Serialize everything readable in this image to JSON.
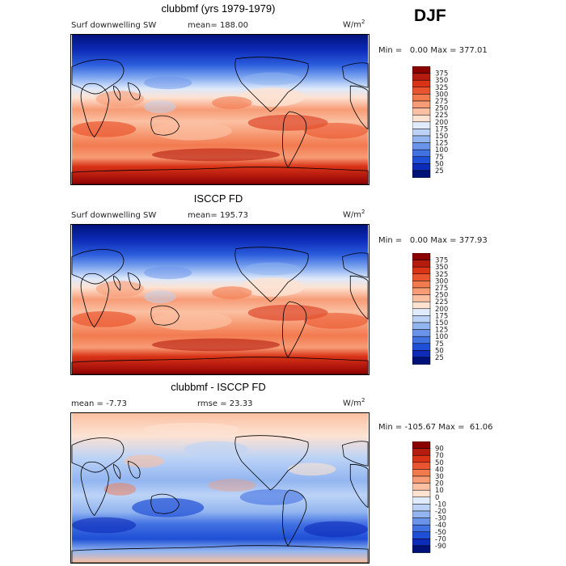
{
  "season": "DJF",
  "panels": [
    {
      "title": "clubbmf (yrs 1979-1979)",
      "variable": "Surf downwelling SW",
      "mean_label": "mean=",
      "mean_value": "188.00",
      "units": "W/m",
      "units_sup": "2",
      "min_label": "Min =",
      "min_value": "0.00",
      "max_label": "Max =",
      "max_value": "377.01"
    },
    {
      "title": "ISCCP FD",
      "variable": "Surf downwelling SW",
      "mean_label": "mean=",
      "mean_value": "195.73",
      "units": "W/m",
      "units_sup": "2",
      "min_label": "Min =",
      "min_value": "0.00",
      "max_label": "Max =",
      "max_value": "377.93"
    },
    {
      "title": "clubbmf - ISCCP FD",
      "variable": "",
      "mean_label": "mean =",
      "mean_value": "-7.73",
      "rmse_label": "rmse =",
      "rmse_value": "23.33",
      "units": "W/m",
      "units_sup": "2",
      "min_label": "Min =",
      "min_value": "-105.67",
      "max_label": "Max =",
      "max_value": "61.06"
    }
  ],
  "colorbar_abs": {
    "labels": [
      "375",
      "350",
      "325",
      "300",
      "275",
      "250",
      "225",
      "200",
      "175",
      "150",
      "125",
      "100",
      "75",
      "50",
      "25"
    ],
    "colors": [
      "#8b0000",
      "#b51b0e",
      "#d93418",
      "#e9552f",
      "#f27a4f",
      "#f79c76",
      "#fbc0a2",
      "#fde2d2",
      "#e0ecfb",
      "#bcd3f6",
      "#92b5f0",
      "#6a93ea",
      "#4271e2",
      "#1f4fd6",
      "#0d2ab8",
      "#00127a"
    ]
  },
  "colorbar_diff": {
    "labels": [
      "90",
      "70",
      "50",
      "40",
      "30",
      "20",
      "10",
      "0",
      "-10",
      "-20",
      "-30",
      "-40",
      "-50",
      "-70",
      "-90"
    ],
    "colors": [
      "#8b0000",
      "#b51b0e",
      "#d93418",
      "#e9552f",
      "#f27a4f",
      "#f79c76",
      "#fbc0a2",
      "#fde2d2",
      "#e0ecfb",
      "#bcd3f6",
      "#92b5f0",
      "#6a93ea",
      "#4271e2",
      "#1f4fd6",
      "#0d2ab8",
      "#00127a"
    ]
  }
}
